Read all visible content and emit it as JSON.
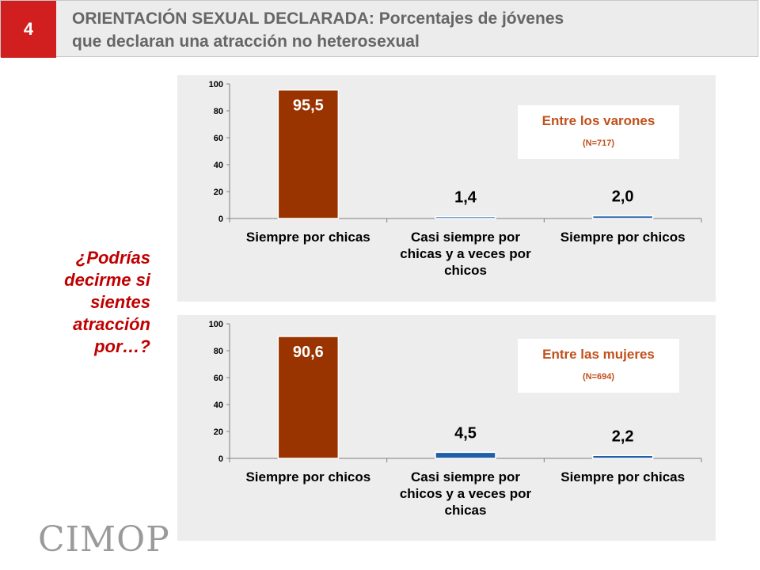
{
  "header": {
    "number": "4",
    "title_line1": "ORIENTACIÓN SEXUAL DECLARADA: Porcentajes de jóvenes",
    "title_line2": "que declaran una atracción no heterosexual"
  },
  "question": "¿Podrías decirme si sientes atracción por…?",
  "logo": "CIMOP",
  "colors": {
    "main_bar": "#993300",
    "secondary_bar": "#1f5fa8",
    "legend_text": "#c0501c",
    "question_text": "#c00000",
    "slide_number_bg": "#d11f1f"
  },
  "chart_data": [
    {
      "type": "bar",
      "legend_title": "Entre los varones",
      "legend_n": "(N=717)",
      "categories": [
        [
          "Siempre por chicas"
        ],
        [
          "Casi siempre por",
          "chicas y a veces por",
          "chicos"
        ],
        [
          "Siempre por chicos"
        ]
      ],
      "values": [
        95.5,
        1.4,
        2.0
      ],
      "value_labels": [
        "95,5",
        "1,4",
        "2,0"
      ],
      "ylim": [
        0,
        100
      ],
      "yticks": [
        "0",
        "20",
        "40",
        "60",
        "80",
        "100"
      ],
      "legend_position": "top-right"
    },
    {
      "type": "bar",
      "legend_title": "Entre las mujeres",
      "legend_n": "(N=694)",
      "categories": [
        [
          "Siempre por chicos"
        ],
        [
          "Casi siempre por",
          "chicos y a veces por",
          "chicas"
        ],
        [
          "Siempre por chicas"
        ]
      ],
      "values": [
        90.6,
        4.5,
        2.2
      ],
      "value_labels": [
        "90,6",
        "4,5",
        "2,2"
      ],
      "ylim": [
        0,
        100
      ],
      "yticks": [
        "0",
        "20",
        "40",
        "60",
        "80",
        "100"
      ],
      "legend_position": "top-right"
    }
  ]
}
